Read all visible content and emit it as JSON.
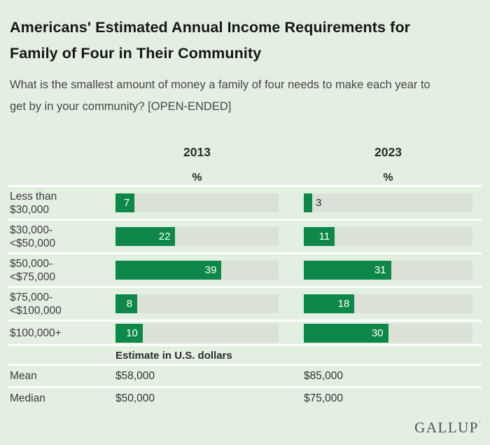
{
  "header": {
    "title": "Americans' Estimated Annual Income Requirements for Family of Four in Their Community",
    "subtitle": "What is the smallest amount of money a family of four needs to make each year to get by in your community? [OPEN-ENDED]"
  },
  "chart_data": {
    "type": "bar",
    "orientation": "horizontal",
    "categories": [
      "Less than\n$30,000",
      "$30,000-\n<$50,000",
      "$50,000-\n<$75,000",
      "$75,000-\n<$100,000",
      "$100,000+"
    ],
    "series": [
      {
        "name": "2013",
        "unit": "%",
        "values": [
          7,
          22,
          39,
          8,
          10
        ]
      },
      {
        "name": "2023",
        "unit": "%",
        "values": [
          3,
          11,
          31,
          18,
          30
        ]
      }
    ],
    "xlim": [
      0,
      60
    ],
    "grid": "off",
    "colors": {
      "bar": "#0e8848",
      "track": "#dbe1d7",
      "background": "#e2efe1"
    },
    "stats_header": "Estimate in U.S. dollars",
    "stats": [
      {
        "label": "Mean",
        "values": [
          "$58,000",
          "$85,000"
        ]
      },
      {
        "label": "Median",
        "values": [
          "$50,000",
          "$75,000"
        ]
      }
    ]
  },
  "footer": {
    "brand": "GALLUP",
    "brand_mark": "’"
  }
}
